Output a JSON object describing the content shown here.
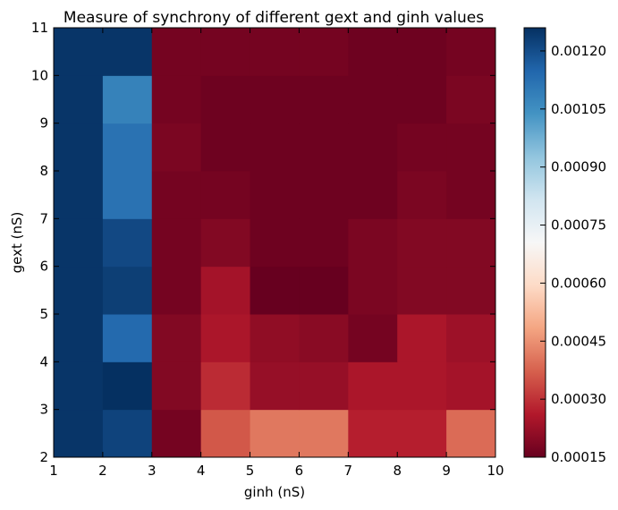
{
  "chart_data": {
    "type": "heatmap",
    "title": "Measure of synchrony of different gext and ginh values",
    "xlabel": "ginh (nS)",
    "ylabel": "gext (nS)",
    "xlim": [
      1,
      10
    ],
    "ylim": [
      2,
      11
    ],
    "x_ticks": [
      "1",
      "2",
      "3",
      "4",
      "5",
      "6",
      "7",
      "8",
      "9",
      "10"
    ],
    "y_ticks": [
      "2",
      "3",
      "4",
      "5",
      "6",
      "7",
      "8",
      "9",
      "10",
      "11"
    ],
    "colorbar": {
      "min": 0.00015,
      "max": 0.00126,
      "ticks": [
        "0.00015",
        "0.00030",
        "0.00045",
        "0.00060",
        "0.00075",
        "0.00090",
        "0.00105",
        "0.00120"
      ],
      "colormap": "RdBu"
    },
    "columns_ginh": [
      1,
      2,
      3,
      4,
      5,
      6,
      7,
      8,
      9
    ],
    "rows_gext": [
      2,
      3,
      4,
      5,
      6,
      7,
      8,
      9,
      10
    ],
    "values": [
      [
        0.00125,
        0.00122,
        0.00017,
        0.00036,
        0.00041,
        0.00041,
        0.00027,
        0.00027,
        0.00039
      ],
      [
        0.00125,
        0.00126,
        0.00019,
        0.00029,
        0.00022,
        0.00022,
        0.00025,
        0.00025,
        0.00024
      ],
      [
        0.00125,
        0.00114,
        0.00019,
        0.00025,
        0.00021,
        0.0002,
        0.00017,
        0.00025,
        0.00023
      ],
      [
        0.00125,
        0.00123,
        0.00017,
        0.00024,
        0.00015,
        0.00015,
        0.00018,
        0.00019,
        0.00019
      ],
      [
        0.00125,
        0.00121,
        0.00017,
        0.00019,
        0.00016,
        0.00016,
        0.00018,
        0.00019,
        0.00019
      ],
      [
        0.00125,
        0.00112,
        0.00017,
        0.00017,
        0.00016,
        0.00016,
        0.00016,
        0.00018,
        0.00017
      ],
      [
        0.00125,
        0.00112,
        0.00018,
        0.00016,
        0.00016,
        0.00016,
        0.00016,
        0.00017,
        0.00017
      ],
      [
        0.00125,
        0.00108,
        0.00017,
        0.00016,
        0.00016,
        0.00016,
        0.00016,
        0.00016,
        0.00018
      ],
      [
        0.00125,
        0.00125,
        0.00017,
        0.00017,
        0.00017,
        0.00017,
        0.00016,
        0.00016,
        0.00017
      ]
    ]
  }
}
